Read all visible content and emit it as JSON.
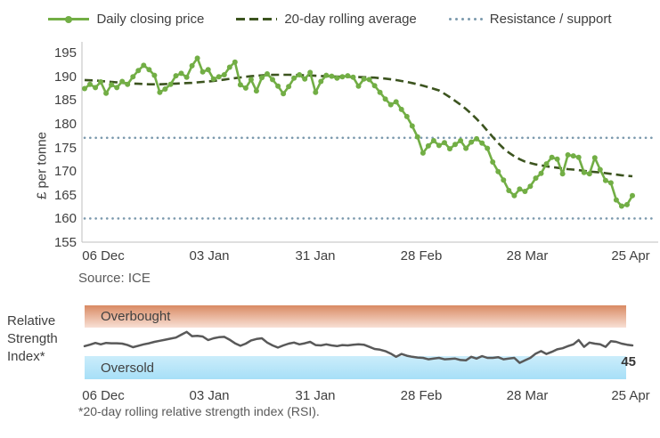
{
  "chart_data": [
    {
      "type": "line",
      "ylabel": "£ per tonne",
      "ylim": [
        155,
        195
      ],
      "yticks": [
        155,
        160,
        165,
        170,
        175,
        180,
        185,
        190,
        195
      ],
      "x_tick_labels": [
        "06 Dec",
        "03 Jan",
        "31 Jan",
        "28 Feb",
        "28 Mar",
        "25 Apr"
      ],
      "grid": false,
      "legend_position": "top",
      "source_note": "Source: ICE",
      "series": [
        {
          "name": "Daily closing price",
          "style": "solid-with-markers",
          "color": "#72AE45",
          "values": [
            187.4,
            188.3,
            187.6,
            188.8,
            186.4,
            188.2,
            187.6,
            188.9,
            188.3,
            189.9,
            191.2,
            192.3,
            191.4,
            190.2,
            186.6,
            187.3,
            188.3,
            190.1,
            190.6,
            189.8,
            192.2,
            193.8,
            190.9,
            191.4,
            189.4,
            189.9,
            190.3,
            191.9,
            193.0,
            188.2,
            187.5,
            189.3,
            186.9,
            189.7,
            190.5,
            189.3,
            187.9,
            186.3,
            187.8,
            189.6,
            190.3,
            189.4,
            190.8,
            186.6,
            188.9,
            190.2,
            190.0,
            189.6,
            189.9,
            190.1,
            189.8,
            187.9,
            189.4,
            189.3,
            188.0,
            186.6,
            185.2,
            184.0,
            184.6,
            183.0,
            181.5,
            179.5,
            177.2,
            173.8,
            175.3,
            176.4,
            175.4,
            176.0,
            174.7,
            175.6,
            176.4,
            174.8,
            176.1,
            176.8,
            175.9,
            174.8,
            171.9,
            169.9,
            168.1,
            165.9,
            164.8,
            166.2,
            165.7,
            166.8,
            168.5,
            169.5,
            171.5,
            172.9,
            172.5,
            169.4,
            173.4,
            173.2,
            172.9,
            169.7,
            169.4,
            172.8,
            170.3,
            168.0,
            167.5,
            163.9,
            162.6,
            162.9,
            164.8
          ]
        },
        {
          "name": "20-day rolling average",
          "style": "dashed",
          "color": "#3C541F",
          "values": [
            189.2,
            189.15,
            189.1,
            189.0,
            188.9,
            188.8,
            188.7,
            188.6,
            188.5,
            188.45,
            188.4,
            188.35,
            188.3,
            188.3,
            188.3,
            188.35,
            188.4,
            188.45,
            188.5,
            188.55,
            188.6,
            188.7,
            188.8,
            188.9,
            189.0,
            189.15,
            189.3,
            189.45,
            189.6,
            189.75,
            189.9,
            190.0,
            190.1,
            190.18,
            190.25,
            190.28,
            190.3,
            190.3,
            190.3,
            190.28,
            190.25,
            190.2,
            190.15,
            190.1,
            190.05,
            190.0,
            189.95,
            189.92,
            189.9,
            189.87,
            189.85,
            189.82,
            189.8,
            189.75,
            189.7,
            189.6,
            189.5,
            189.35,
            189.2,
            189.0,
            188.8,
            188.55,
            188.3,
            188.0,
            187.7,
            187.35,
            187.0,
            186.3,
            185.6,
            184.8,
            184.0,
            183.1,
            182.1,
            181.0,
            179.8,
            178.5,
            177.2,
            175.9,
            174.8,
            173.9,
            173.1,
            172.5,
            172.0,
            171.7,
            171.4,
            171.2,
            171.0,
            170.85,
            170.7,
            170.55,
            170.4,
            170.3,
            170.2,
            170.05,
            169.9,
            169.8,
            169.7,
            169.55,
            169.4,
            169.25,
            169.1,
            169.0,
            168.9
          ]
        },
        {
          "name": "Resistance / support",
          "style": "dotted-levels",
          "color": "#7B99AD",
          "levels": [
            177,
            160
          ]
        }
      ]
    },
    {
      "type": "line",
      "axis_label_lines": [
        "Relative",
        "Strength",
        "Index*"
      ],
      "x_tick_labels": [
        "06 Dec",
        "03 Jan",
        "31 Jan",
        "28 Feb",
        "28 Mar",
        "25 Apr"
      ],
      "bands": [
        {
          "label": "Overbought",
          "colors": [
            "#D98A63",
            "#F8E0D5"
          ]
        },
        {
          "label": "Oversold",
          "colors": [
            "#CBEDFB",
            "#A7DFF7"
          ]
        }
      ],
      "last_value_label": "45",
      "footnote": "*20-day rolling relative strength index (RSI).",
      "series": [
        {
          "name": "RSI",
          "style": "solid",
          "color": "#595959",
          "values": [
            44,
            46,
            48.5,
            46.5,
            48.5,
            48,
            48,
            47.5,
            45.5,
            42.5,
            44.5,
            46.5,
            48,
            50,
            51.5,
            53,
            54.5,
            56,
            60,
            64,
            58,
            58.5,
            57.5,
            52.5,
            55,
            56.5,
            57,
            53,
            48,
            44.5,
            47.5,
            52,
            54,
            55,
            49,
            45,
            42,
            45,
            47.5,
            49,
            46.5,
            48,
            50,
            45.5,
            45,
            46.5,
            45,
            44,
            45.5,
            45,
            46,
            46.5,
            46,
            43,
            40,
            39,
            37,
            33.5,
            29,
            33,
            30.5,
            29,
            28,
            27.5,
            25.5,
            26.5,
            27.5,
            25.5,
            26,
            26.5,
            24.5,
            24,
            29,
            26.5,
            30,
            27.5,
            27.5,
            28.5,
            25.5,
            26.5,
            27.5,
            20.5,
            24,
            27.5,
            33.5,
            37,
            33,
            36,
            39.5,
            41,
            44,
            46.5,
            52.5,
            43,
            49,
            47.5,
            46.5,
            43,
            51,
            50,
            47.5,
            46,
            45
          ]
        }
      ]
    }
  ]
}
